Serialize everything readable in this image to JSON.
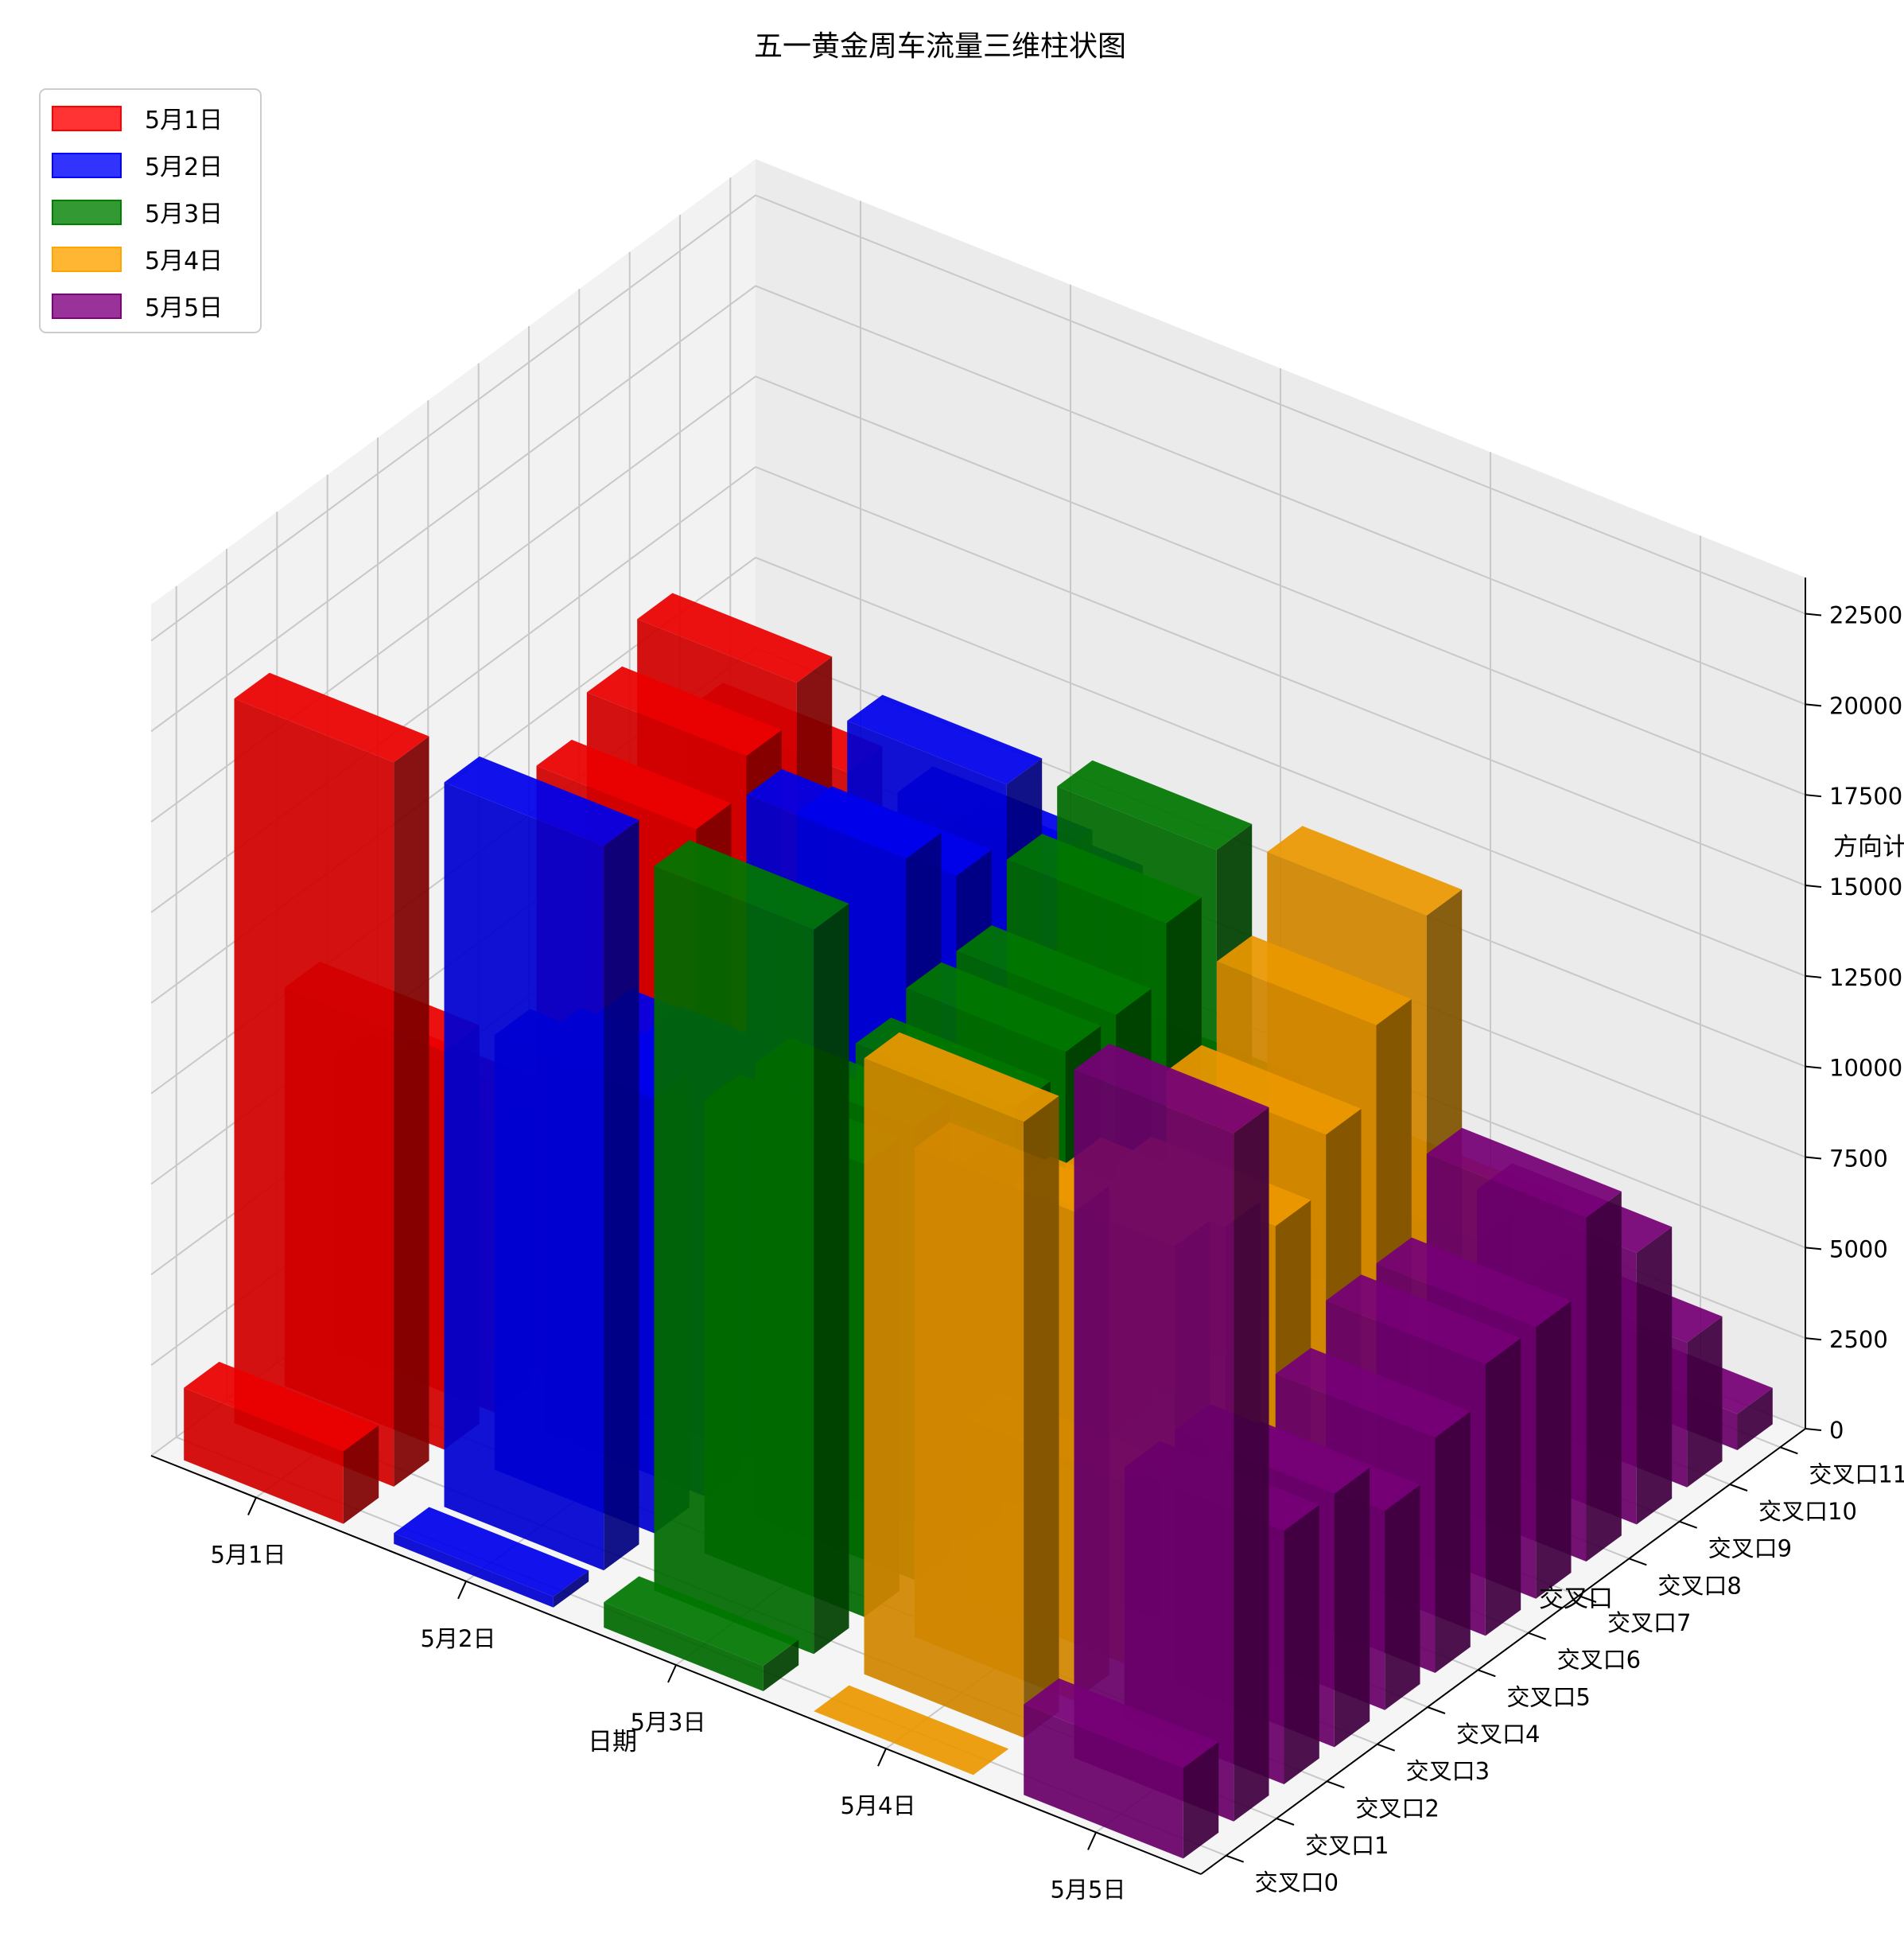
{
  "chart_data": {
    "type": "bar3d",
    "title": "五一黄金周车流量三维柱状图",
    "xlabel": "日期",
    "ylabel": "交叉口",
    "zlabel": "方向计",
    "x_categories": [
      "5月1日",
      "5月2日",
      "5月3日",
      "5月4日",
      "5月5日"
    ],
    "y_categories": [
      "交叉口0",
      "交叉口1",
      "交叉口2",
      "交叉口3",
      "交叉口4",
      "交叉口5",
      "交叉口6",
      "交叉口7",
      "交叉口8",
      "交叉口9",
      "交叉口10",
      "交叉口11"
    ],
    "zlim": [
      0,
      23500
    ],
    "z_ticks": [
      0,
      2500,
      5000,
      7500,
      10000,
      12500,
      15000,
      17500,
      20000,
      22500
    ],
    "legend_position": "upper-left",
    "grid": true,
    "series": [
      {
        "name": "5月1日",
        "color": "#ff0000",
        "values": [
          2000,
          20000,
          11000,
          8000,
          7000,
          3500,
          3000,
          12000,
          13000,
          14000,
          10500,
          6000
        ]
      },
      {
        "name": "5月2日",
        "color": "#0000ff",
        "values": [
          300,
          20000,
          12000,
          11000,
          10500,
          9000,
          6000,
          13500,
          12000,
          13500,
          10500,
          8500
        ]
      },
      {
        "name": "5月3日",
        "color": "#008000",
        "values": [
          700,
          20000,
          12500,
          12500,
          10500,
          11000,
          11500,
          11500,
          13000,
          14000,
          6000,
          4000
        ]
      },
      {
        "name": "5月4日",
        "color": "#ffa500",
        "values": [
          0,
          17000,
          13500,
          5000,
          10500,
          10000,
          9000,
          10500,
          12500,
          14500,
          4500,
          4000
        ]
      },
      {
        "name": "5月5日",
        "color": "#800080",
        "values": [
          2500,
          19000,
          7000,
          7000,
          5500,
          6500,
          7500,
          7500,
          9500,
          7500,
          4000,
          1000
        ]
      }
    ]
  }
}
